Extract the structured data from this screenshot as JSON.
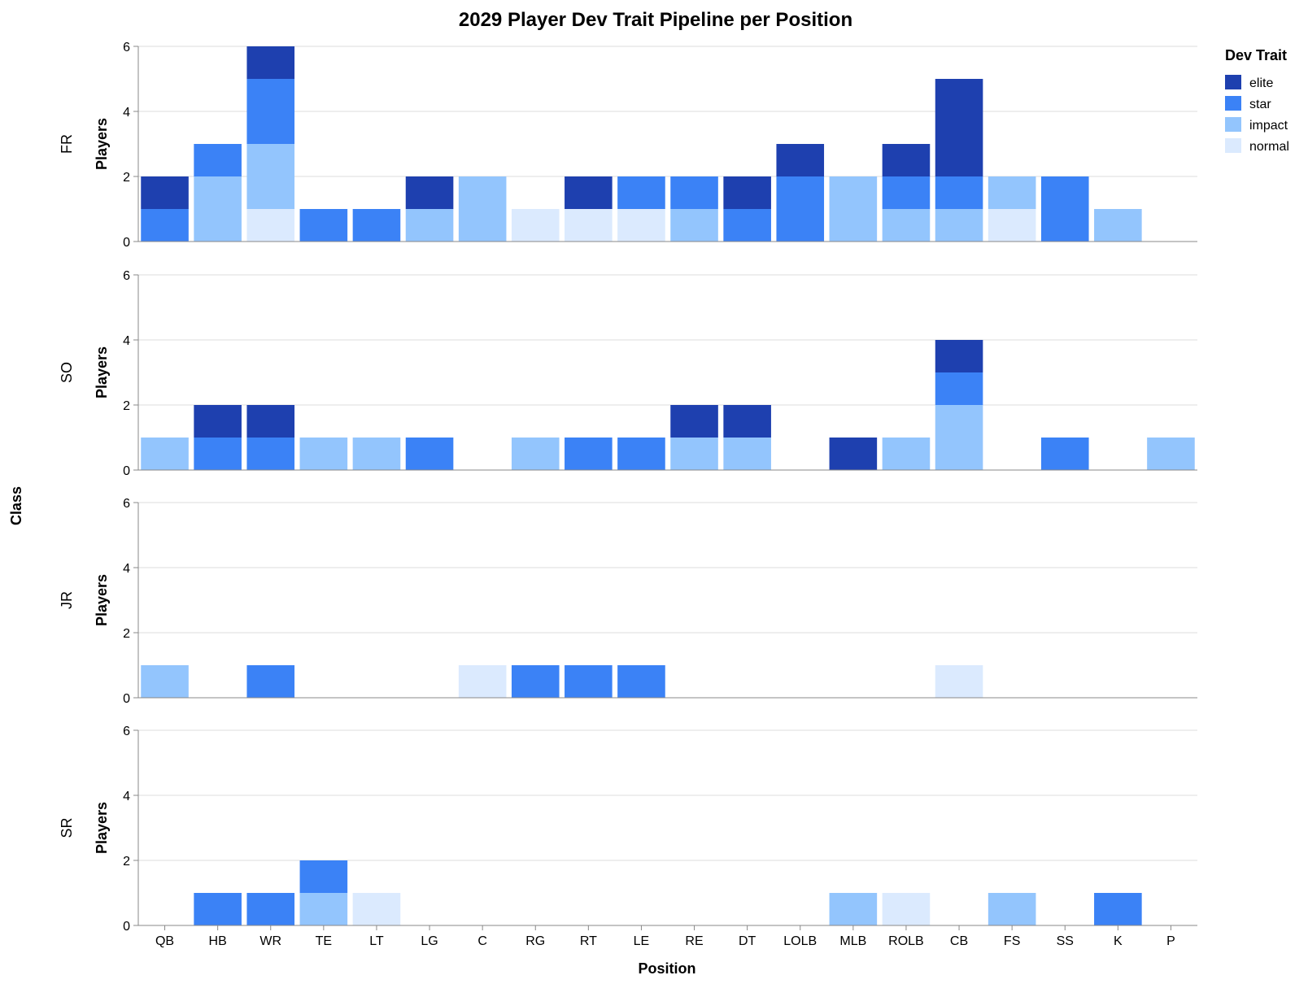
{
  "chart_data": {
    "type": "bar",
    "stacked": true,
    "title": "2029 Player Dev Trait Pipeline per Position",
    "xlabel": "Position",
    "ylabel": "Players",
    "row_title": "Class",
    "legend_title": "Dev Trait",
    "legend_position": "top-right",
    "grid": true,
    "ylim": [
      0,
      6
    ],
    "yticks": [
      0,
      2,
      4,
      6
    ],
    "categories": [
      "QB",
      "HB",
      "WR",
      "TE",
      "LT",
      "LG",
      "C",
      "RG",
      "RT",
      "LE",
      "RE",
      "DT",
      "LOLB",
      "MLB",
      "ROLB",
      "CB",
      "FS",
      "SS",
      "K",
      "P"
    ],
    "traits": [
      {
        "name": "elite",
        "color": "#1e40af"
      },
      {
        "name": "star",
        "color": "#3b82f6"
      },
      {
        "name": "impact",
        "color": "#93c5fd"
      },
      {
        "name": "normal",
        "color": "#dbeafe"
      }
    ],
    "stack_order": [
      "normal",
      "impact",
      "star",
      "elite"
    ],
    "facets": [
      {
        "row": "FR",
        "series": [
          {
            "name": "elite",
            "values": [
              1,
              0,
              1,
              0,
              0,
              1,
              0,
              0,
              1,
              0,
              0,
              1,
              1,
              0,
              1,
              3,
              0,
              0,
              0,
              0
            ]
          },
          {
            "name": "star",
            "values": [
              1,
              1,
              2,
              1,
              1,
              0,
              0,
              0,
              0,
              1,
              1,
              1,
              2,
              0,
              1,
              1,
              0,
              2,
              0,
              0
            ]
          },
          {
            "name": "impact",
            "values": [
              0,
              2,
              2,
              0,
              0,
              1,
              2,
              0,
              0,
              0,
              1,
              0,
              0,
              2,
              1,
              1,
              1,
              0,
              1,
              0
            ]
          },
          {
            "name": "normal",
            "values": [
              0,
              0,
              1,
              0,
              0,
              0,
              0,
              1,
              1,
              1,
              0,
              0,
              0,
              0,
              0,
              0,
              1,
              0,
              0,
              0
            ]
          }
        ]
      },
      {
        "row": "SO",
        "series": [
          {
            "name": "elite",
            "values": [
              0,
              1,
              1,
              0,
              0,
              0,
              0,
              0,
              0,
              0,
              1,
              1,
              0,
              1,
              0,
              1,
              0,
              0,
              0,
              0
            ]
          },
          {
            "name": "star",
            "values": [
              0,
              1,
              1,
              0,
              0,
              1,
              0,
              0,
              1,
              1,
              0,
              0,
              0,
              0,
              0,
              1,
              0,
              1,
              0,
              0
            ]
          },
          {
            "name": "impact",
            "values": [
              1,
              0,
              0,
              1,
              1,
              0,
              0,
              1,
              0,
              0,
              1,
              1,
              0,
              0,
              1,
              2,
              0,
              0,
              0,
              1
            ]
          },
          {
            "name": "normal",
            "values": [
              0,
              0,
              0,
              0,
              0,
              0,
              0,
              0,
              0,
              0,
              0,
              0,
              0,
              0,
              0,
              0,
              0,
              0,
              0,
              0
            ]
          }
        ]
      },
      {
        "row": "JR",
        "series": [
          {
            "name": "elite",
            "values": [
              0,
              0,
              0,
              0,
              0,
              0,
              0,
              0,
              0,
              0,
              0,
              0,
              0,
              0,
              0,
              0,
              0,
              0,
              0,
              0
            ]
          },
          {
            "name": "star",
            "values": [
              0,
              0,
              1,
              0,
              0,
              0,
              0,
              1,
              1,
              1,
              0,
              0,
              0,
              0,
              0,
              0,
              0,
              0,
              0,
              0
            ]
          },
          {
            "name": "impact",
            "values": [
              1,
              0,
              0,
              0,
              0,
              0,
              0,
              0,
              0,
              0,
              0,
              0,
              0,
              0,
              0,
              0,
              0,
              0,
              0,
              0
            ]
          },
          {
            "name": "normal",
            "values": [
              0,
              0,
              0,
              0,
              0,
              0,
              1,
              0,
              0,
              0,
              0,
              0,
              0,
              0,
              0,
              1,
              0,
              0,
              0,
              0
            ]
          }
        ]
      },
      {
        "row": "SR",
        "series": [
          {
            "name": "elite",
            "values": [
              0,
              0,
              0,
              0,
              0,
              0,
              0,
              0,
              0,
              0,
              0,
              0,
              0,
              0,
              0,
              0,
              0,
              0,
              0,
              0
            ]
          },
          {
            "name": "star",
            "values": [
              0,
              1,
              1,
              1,
              0,
              0,
              0,
              0,
              0,
              0,
              0,
              0,
              0,
              0,
              0,
              0,
              0,
              0,
              1,
              0
            ]
          },
          {
            "name": "impact",
            "values": [
              0,
              0,
              0,
              1,
              0,
              0,
              0,
              0,
              0,
              0,
              0,
              0,
              0,
              1,
              0,
              0,
              1,
              0,
              0,
              0
            ]
          },
          {
            "name": "normal",
            "values": [
              0,
              0,
              0,
              0,
              1,
              0,
              0,
              0,
              0,
              0,
              0,
              0,
              0,
              0,
              1,
              0,
              0,
              0,
              0,
              0
            ]
          }
        ]
      }
    ]
  }
}
